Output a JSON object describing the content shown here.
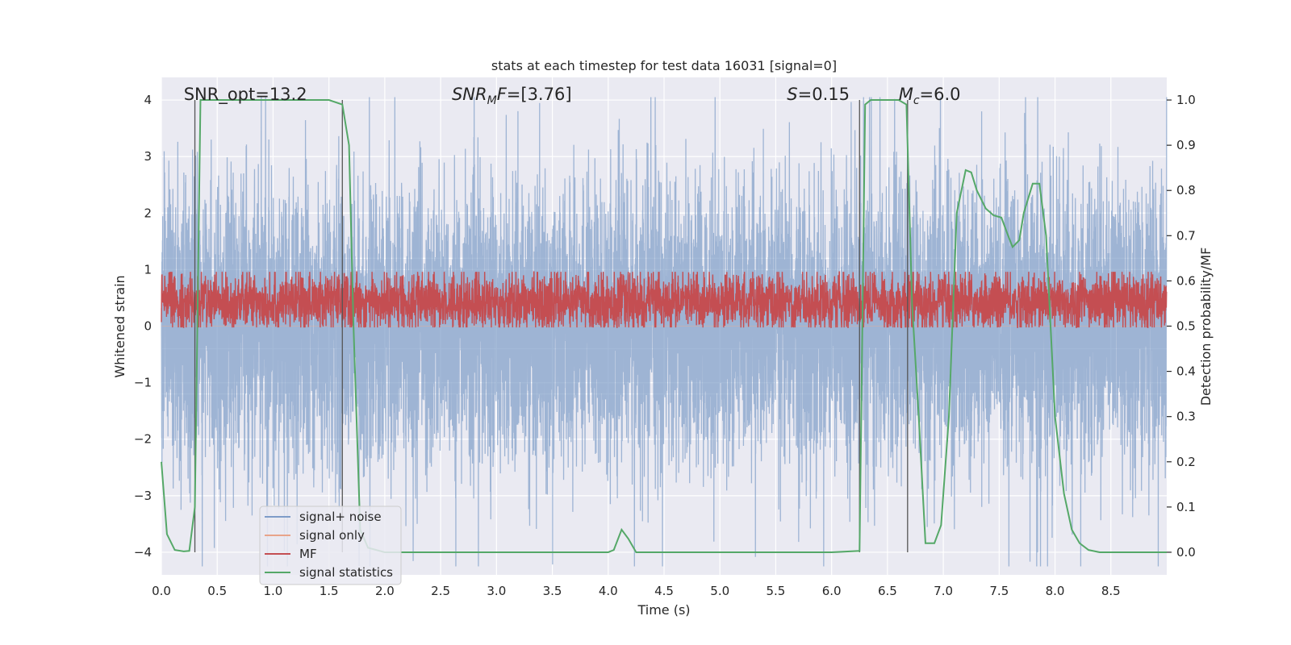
{
  "chart_data": {
    "type": "line",
    "title": "stats at each timestep for test data 16031 [signal=0]",
    "xlabel": "Time (s)",
    "ylabel": "Whitened strain",
    "y2label": "Detection probability/MF",
    "xlim": [
      0,
      9
    ],
    "ylim": [
      -4.4,
      4.4
    ],
    "y2lim": [
      -0.05,
      1.05
    ],
    "xticks": [
      0.0,
      0.5,
      1.0,
      1.5,
      2.0,
      2.5,
      3.0,
      3.5,
      4.0,
      4.5,
      5.0,
      5.5,
      6.0,
      6.5,
      7.0,
      7.5,
      8.0,
      8.5
    ],
    "xtick_labels": [
      "0.0",
      "0.5",
      "1.0",
      "1.5",
      "2.0",
      "2.5",
      "3.0",
      "3.5",
      "4.0",
      "4.5",
      "5.0",
      "5.5",
      "6.0",
      "6.5",
      "7.0",
      "7.5",
      "8.0",
      "8.5"
    ],
    "yticks": [
      -4,
      -3,
      -2,
      -1,
      0,
      1,
      2,
      3,
      4
    ],
    "ytick_labels": [
      "−4",
      "−3",
      "−2",
      "−1",
      "0",
      "1",
      "2",
      "3",
      "4"
    ],
    "y2ticks": [
      0.0,
      0.1,
      0.2,
      0.3,
      0.4,
      0.5,
      0.6,
      0.7,
      0.8,
      0.9,
      1.0
    ],
    "y2tick_labels": [
      "0.0",
      "0.1",
      "0.2",
      "0.3",
      "0.4",
      "0.5",
      "0.6",
      "0.7",
      "0.8",
      "0.9",
      "1.0"
    ],
    "extra_hgrid_y2": [
      0.35,
      0.45,
      0.55,
      0.65,
      0.75
    ],
    "annotations": [
      {
        "id": "snr-opt",
        "text": "SNR_opt=13.2",
        "x": 0.2
      },
      {
        "id": "snr-mf",
        "text": "SNR",
        "sub": "M",
        "after": "F=[3.76]",
        "italic": true,
        "x": 2.6
      },
      {
        "id": "s-value",
        "text": "S",
        "after": "=0.15",
        "italic": true,
        "x": 5.6
      },
      {
        "id": "mc-value",
        "text": "M",
        "sub": "c",
        "after": "=6.0",
        "italic": true,
        "x": 6.6
      }
    ],
    "marker_lines_x": [
      0.3,
      1.62,
      6.25,
      6.68
    ],
    "series": [
      {
        "name": "signal+ noise",
        "color": "#7e9cc8",
        "kind": "noise",
        "envelope_mean": 3.1,
        "samples": 9000
      },
      {
        "name": "signal only",
        "color": "#e8a48a",
        "kind": "flat",
        "value": 0
      },
      {
        "name": "MF",
        "color": "#c44e52",
        "kind": "noise-band",
        "axis": "y2",
        "center": 0.552,
        "amplitude": 0.045,
        "samples": 4500
      },
      {
        "name": "signal statistics",
        "color": "#55a868",
        "axis": "y2",
        "x": [
          0.0,
          0.05,
          0.12,
          0.2,
          0.25,
          0.3,
          0.35,
          0.4,
          1.0,
          1.5,
          1.62,
          1.68,
          1.72,
          1.78,
          1.85,
          2.0,
          3.0,
          4.0,
          4.05,
          4.12,
          4.18,
          4.25,
          4.3,
          5.0,
          6.0,
          6.25,
          6.3,
          6.35,
          6.6,
          6.67,
          6.72,
          6.78,
          6.84,
          6.92,
          6.98,
          7.05,
          7.12,
          7.2,
          7.25,
          7.3,
          7.38,
          7.45,
          7.52,
          7.58,
          7.62,
          7.68,
          7.72,
          7.8,
          7.86,
          7.92,
          8.0,
          8.08,
          8.15,
          8.22,
          8.3,
          8.4,
          9.0
        ],
        "y": [
          0.2,
          0.04,
          0.005,
          0.002,
          0.003,
          0.1,
          1.0,
          1.0,
          1.0,
          1.0,
          0.99,
          0.9,
          0.5,
          0.05,
          0.01,
          0.0,
          0.0,
          0.0,
          0.005,
          0.05,
          0.03,
          0.0,
          0.0,
          0.0,
          0.0,
          0.003,
          0.99,
          1.0,
          1.0,
          0.99,
          0.55,
          0.3,
          0.02,
          0.02,
          0.06,
          0.3,
          0.75,
          0.845,
          0.84,
          0.8,
          0.76,
          0.745,
          0.74,
          0.7,
          0.675,
          0.69,
          0.75,
          0.815,
          0.815,
          0.7,
          0.3,
          0.13,
          0.05,
          0.02,
          0.005,
          0.0,
          0.0
        ]
      }
    ],
    "legend": {
      "location": "bottom-left",
      "entries": [
        "signal+ noise",
        "signal only",
        "MF",
        "signal statistics"
      ]
    }
  }
}
